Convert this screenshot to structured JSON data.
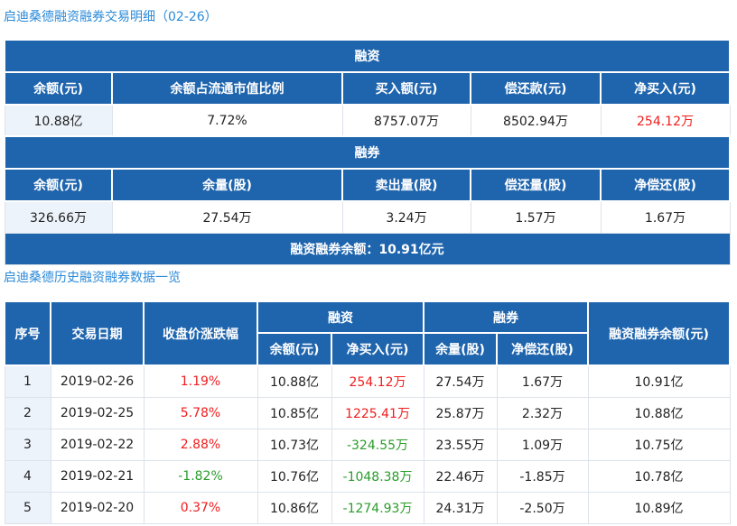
{
  "detail": {
    "title": "启迪桑德融资融券交易明细（02-26）",
    "financing": {
      "header": "融资",
      "columns": [
        "余额(元)",
        "余额占流通市值比例",
        "买入额(元)",
        "偿还款(元)",
        "净买入(元)"
      ],
      "values": [
        "10.88亿",
        "7.72%",
        "8757.07万",
        "8502.94万",
        "254.12万"
      ]
    },
    "securities": {
      "header": "融券",
      "columns": [
        "余额(元)",
        "余量(股)",
        "卖出量(股)",
        "偿还量(股)",
        "净偿还(股)"
      ],
      "values": [
        "326.66万",
        "27.54万",
        "3.24万",
        "1.57万",
        "1.67万"
      ]
    },
    "total": "融资融券余额：10.91亿元"
  },
  "history": {
    "title": "启迪桑德历史融资融券数据一览",
    "headers": {
      "index": "序号",
      "date": "交易日期",
      "change": "收盘价涨跌幅",
      "financing": "融资",
      "fin_balance": "余额(元)",
      "fin_net": "净买入(元)",
      "securities": "融券",
      "sec_volume": "余量(股)",
      "sec_net": "净偿还(股)",
      "total": "融资融券余额(元)"
    },
    "rows": [
      {
        "index": "1",
        "date": "2019-02-26",
        "change": "1.19%",
        "fin_balance": "10.88亿",
        "fin_net": "254.12万",
        "sec_volume": "27.54万",
        "sec_net": "1.67万",
        "total": "10.91亿"
      },
      {
        "index": "2",
        "date": "2019-02-25",
        "change": "5.78%",
        "fin_balance": "10.85亿",
        "fin_net": "1225.41万",
        "sec_volume": "25.87万",
        "sec_net": "2.32万",
        "total": "10.88亿"
      },
      {
        "index": "3",
        "date": "2019-02-22",
        "change": "2.88%",
        "fin_balance": "10.73亿",
        "fin_net": "-324.55万",
        "sec_volume": "23.55万",
        "sec_net": "1.09万",
        "total": "10.75亿"
      },
      {
        "index": "4",
        "date": "2019-02-21",
        "change": "-1.82%",
        "fin_balance": "10.76亿",
        "fin_net": "-1048.38万",
        "sec_volume": "22.46万",
        "sec_net": "-1.85万",
        "total": "10.78亿"
      },
      {
        "index": "5",
        "date": "2019-02-20",
        "change": "0.37%",
        "fin_balance": "10.86亿",
        "fin_net": "-1274.93万",
        "sec_volume": "24.31万",
        "sec_net": "-2.50万",
        "total": "10.89亿"
      }
    ]
  },
  "colors": {
    "header_bg": "#1f65ad",
    "positive": "#f01d1d",
    "negative": "#2a9d2a",
    "title": "#2a8ad8"
  }
}
